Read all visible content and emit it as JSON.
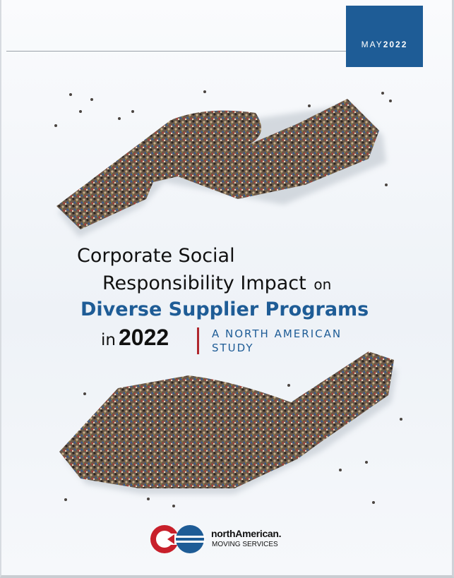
{
  "header": {
    "month": "MAY",
    "year": "2022",
    "accent_color": "#1e5c96"
  },
  "title": {
    "line1": "Corporate Social",
    "line2": "Responsibility Impact",
    "line2_suffix": "on",
    "line3": "Diverse Supplier Programs",
    "line4_prefix": "in",
    "line4_year": "2022",
    "subtitle_line1": "A NORTH AMERICAN",
    "subtitle_line2": "STUDY",
    "divider_color": "#b0272e"
  },
  "illustration": {
    "description_icon": "crowd-hands-icon"
  },
  "logo": {
    "brand": "northAmerican.",
    "tagline": "MOVING SERVICES"
  }
}
